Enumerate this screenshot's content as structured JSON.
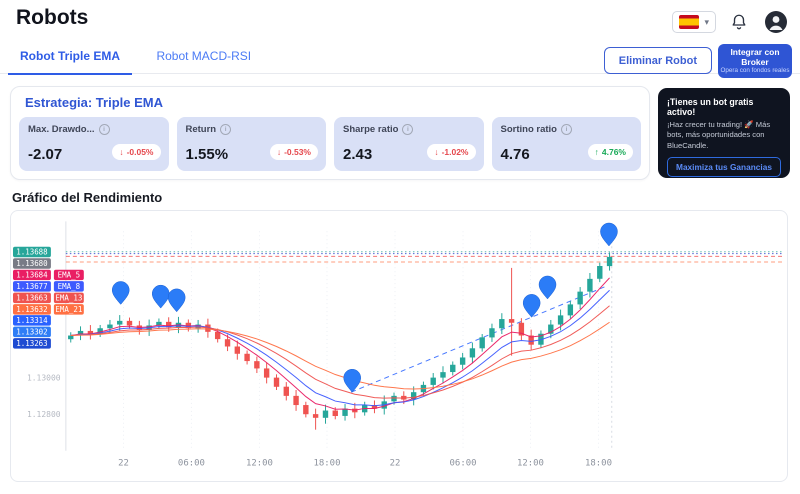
{
  "header": {
    "title": "Robots"
  },
  "topbar": {
    "language": "es",
    "chevron": "▾"
  },
  "tabs": [
    {
      "label": "Robot Triple EMA",
      "active": true
    },
    {
      "label": "Robot MACD-RSI",
      "active": false
    }
  ],
  "actions": {
    "delete_label": "Eliminar Robot",
    "broker_label": "Integrar con Broker",
    "broker_sublabel": "Opera con fondos reales"
  },
  "strategy": {
    "title": "Estrategia: Triple EMA",
    "metrics": [
      {
        "label": "Max. Drawdo...",
        "value": "-2.07",
        "arrow": "↓",
        "change": "-0.05%",
        "dir": "down"
      },
      {
        "label": "Return",
        "value": "1.55%",
        "arrow": "↓",
        "change": "-0.53%",
        "dir": "down"
      },
      {
        "label": "Sharpe ratio",
        "value": "2.43",
        "arrow": "↓",
        "change": "-1.02%",
        "dir": "down"
      },
      {
        "label": "Sortino ratio",
        "value": "4.76",
        "arrow": "↑",
        "change": "4.76%",
        "dir": "up"
      }
    ]
  },
  "promo": {
    "title": "¡Tienes un bot gratis activo!",
    "body": "¡Haz crecer tu trading! 🚀 Más bots, más oportunidades con BlueCandle.",
    "cta": "Maximiza tus Ganancias"
  },
  "chart_section": {
    "title": "Gráfico del Rendimiento"
  },
  "colors": {
    "accent": "#2e5ce6",
    "negative": "#e5484d",
    "positive": "#18a957"
  },
  "chart_data": {
    "type": "candlestick",
    "title": "Gráfico del Rendimiento",
    "price_range": [
      1.126,
      1.138
    ],
    "closes": [
      1.1323,
      1.13255,
      1.1324,
      1.1327,
      1.1329,
      1.1331,
      1.13285,
      1.1326,
      1.13285,
      1.13305,
      1.13275,
      1.133,
      1.1327,
      1.1329,
      1.1325,
      1.1321,
      1.1317,
      1.1313,
      1.1309,
      1.1305,
      1.13,
      1.1295,
      1.129,
      1.1285,
      1.128,
      1.1278,
      1.1282,
      1.1279,
      1.1283,
      1.1281,
      1.1285,
      1.1283,
      1.1287,
      1.129,
      1.1288,
      1.1292,
      1.1296,
      1.13,
      1.1303,
      1.1307,
      1.1311,
      1.1316,
      1.1322,
      1.1327,
      1.1332,
      1.133,
      1.1323,
      1.1318,
      1.1324,
      1.1329,
      1.1334,
      1.134,
      1.1347,
      1.1354,
      1.1361,
      1.1366
    ],
    "wick_overrides": [
      {
        "index": 45,
        "high": 1.136,
        "low": 1.1312
      },
      {
        "index": 25,
        "high": 1.1283,
        "low": 1.12715
      }
    ],
    "emas": [
      {
        "name": "EMA_5",
        "period": 5,
        "color": "#e91e63"
      },
      {
        "name": "EMA_8",
        "period": 8,
        "color": "#3d5afe"
      },
      {
        "name": "EMA_13",
        "period": 13,
        "color": "#ef5350"
      },
      {
        "name": "EMA_21",
        "period": 21,
        "color": "#ff7043"
      }
    ],
    "x_ticks": [
      {
        "f": 0.105,
        "label": "22"
      },
      {
        "f": 0.229,
        "label": "06:00"
      },
      {
        "f": 0.353,
        "label": "12:00"
      },
      {
        "f": 0.476,
        "label": "18:00"
      },
      {
        "f": 0.6,
        "label": "22"
      },
      {
        "f": 0.724,
        "label": "06:00"
      },
      {
        "f": 0.847,
        "label": "12:00"
      },
      {
        "f": 0.971,
        "label": "18:00"
      }
    ],
    "y_axis_labels": [
      {
        "price": 1.13,
        "label": "1.13000"
      },
      {
        "price": 1.128,
        "label": "1.12800"
      }
    ],
    "hlines": [
      {
        "price": 1.13688,
        "color": "#26a69a",
        "dash": "1.5 2.5"
      },
      {
        "price": 1.1368,
        "color": "#8a8f9b",
        "dash": "1.5 2.5"
      },
      {
        "price": 1.13677,
        "color": "#3d5afe",
        "dash": "1.5 2.5"
      },
      {
        "price": 1.13663,
        "color": "#ef5350",
        "dash": "4 3"
      },
      {
        "price": 1.13632,
        "color": "#ff7043",
        "dash": "4 3"
      }
    ],
    "trendline": {
      "f1": 0.52,
      "p1": 1.1292,
      "f2": 0.985,
      "p2": 1.135,
      "color": "#2962ff"
    },
    "markers": [
      {
        "f": 0.1,
        "price": 1.134
      },
      {
        "f": 0.173,
        "price": 1.1338
      },
      {
        "f": 0.202,
        "price": 1.1336
      },
      {
        "f": 0.522,
        "price": 1.1292
      },
      {
        "f": 0.849,
        "price": 1.1333
      },
      {
        "f": 0.878,
        "price": 1.1343
      },
      {
        "f": 0.99,
        "price": 1.1372
      }
    ],
    "top_stack_anchor": 1.13688,
    "mid_stack_anchor": 1.13314,
    "left_tags_top": [
      {
        "label": "1.13688",
        "color": "#26a69a"
      },
      {
        "label": "1.13680",
        "color": "#787b86"
      },
      {
        "label": "1.13684",
        "color": "#e91e63",
        "series": "EMA_5"
      },
      {
        "label": "1.13677",
        "color": "#3d5afe",
        "series": "EMA_8"
      },
      {
        "label": "1.13663",
        "color": "#ef5350",
        "series": "EMA_13"
      },
      {
        "label": "1.13632",
        "color": "#ff7043",
        "series": "EMA_21"
      }
    ],
    "left_tags_mid": [
      {
        "label": "1.13314",
        "color": "#2962ff"
      },
      {
        "label": "1.13302",
        "color": "#2e7df6"
      },
      {
        "label": "1.13263",
        "color": "#1e4bd2"
      }
    ],
    "colors": {
      "up": "#26a69a",
      "down": "#ef5350",
      "marker": "#2b7cf7",
      "grid": "#edf0f5",
      "axis": "#dde1e8"
    }
  }
}
